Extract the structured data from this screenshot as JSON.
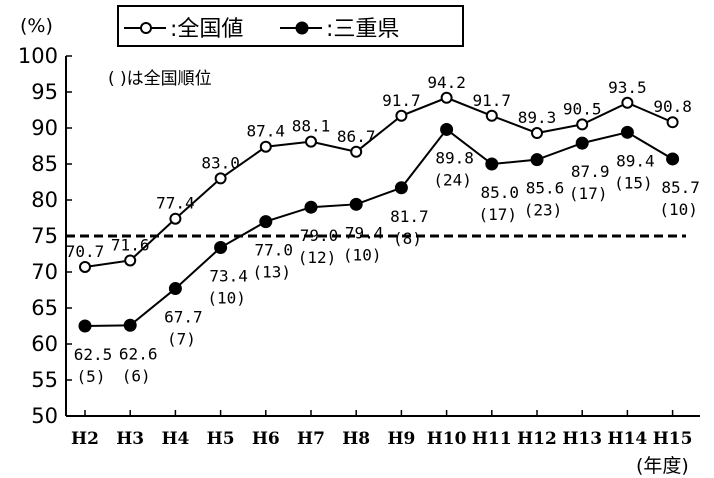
{
  "chart_data": {
    "type": "line",
    "title": "",
    "ylabel": "(%)",
    "xlabel": "(年度)",
    "ylim": [
      50,
      100
    ],
    "yticks": [
      50,
      55,
      60,
      65,
      70,
      75,
      80,
      85,
      90,
      95,
      100
    ],
    "categories": [
      "H2",
      "H3",
      "H4",
      "H5",
      "H6",
      "H7",
      "H8",
      "H9",
      "H10",
      "H11",
      "H12",
      "H13",
      "H14",
      "H15"
    ],
    "series": [
      {
        "name": ":全国値",
        "marker": "open-circle",
        "values": [
          70.7,
          71.6,
          77.4,
          83.0,
          87.4,
          88.1,
          86.7,
          91.7,
          94.2,
          91.7,
          89.3,
          90.5,
          93.5,
          90.8
        ],
        "labels": [
          "70.7",
          "71.6",
          "77.4",
          "83.0",
          "87.4",
          "88.1",
          "86.7",
          "91.7",
          "94.2",
          "91.7",
          "89.3",
          "90.5",
          "93.5",
          "90.8"
        ]
      },
      {
        "name": ":三重県",
        "marker": "filled-circle",
        "values": [
          62.5,
          62.6,
          67.7,
          73.4,
          77.0,
          79.0,
          79.4,
          81.7,
          89.8,
          85.0,
          85.6,
          87.9,
          89.4,
          85.7
        ],
        "labels": [
          "62.5",
          "62.6",
          "67.7",
          "73.4",
          "77.0",
          "79.0",
          "79.4",
          "81.7",
          "89.8",
          "85.0",
          "85.6",
          "87.9",
          "89.4",
          "85.7"
        ],
        "ranks": [
          "(5)",
          "(6)",
          "(7)",
          "(10)",
          "(13)",
          "(12)",
          "(10)",
          "(8)",
          "(24)",
          "(17)",
          "(23)",
          "(17)",
          "(15)",
          "(10)"
        ]
      }
    ],
    "reference_line": {
      "value": 75,
      "style": "dashed"
    },
    "note": "( )は全国順位",
    "legend_position": "top",
    "grid": false
  }
}
